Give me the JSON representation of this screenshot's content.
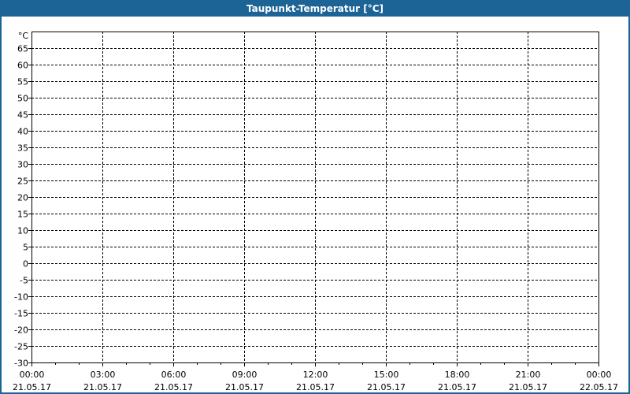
{
  "chart_data": {
    "type": "line",
    "title": "Taupunkt-Temperatur [°C]",
    "ylabel": "°C",
    "ylim": [
      -30,
      70
    ],
    "yticks": [
      65,
      60,
      55,
      50,
      45,
      40,
      35,
      30,
      25,
      20,
      15,
      10,
      5,
      0,
      -5,
      -10,
      -15,
      -20,
      -25,
      -30
    ],
    "xticks": [
      {
        "time": "00:00",
        "date": "21.05.17"
      },
      {
        "time": "03:00",
        "date": "21.05.17"
      },
      {
        "time": "06:00",
        "date": "21.05.17"
      },
      {
        "time": "09:00",
        "date": "21.05.17"
      },
      {
        "time": "12:00",
        "date": "21.05.17"
      },
      {
        "time": "15:00",
        "date": "21.05.17"
      },
      {
        "time": "18:00",
        "date": "21.05.17"
      },
      {
        "time": "21:00",
        "date": "21.05.17"
      },
      {
        "time": "00:00",
        "date": "22.05.17"
      }
    ],
    "series": [],
    "grid": true,
    "colors": {
      "titlebar": "#1c6496",
      "grid": "#000000"
    }
  }
}
